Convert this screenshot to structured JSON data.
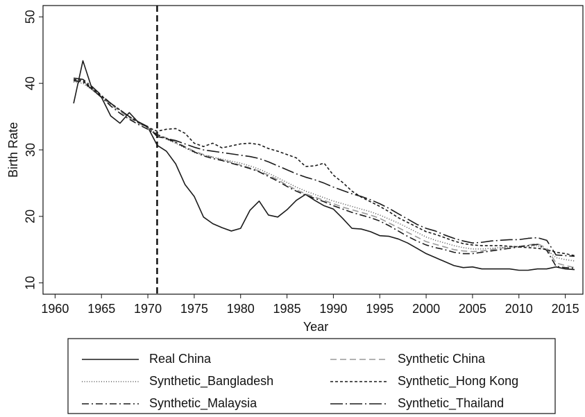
{
  "chart_data": {
    "type": "line",
    "x_label": "Year",
    "y_label": "Birth Rate",
    "x": [
      1962,
      1963,
      1964,
      1965,
      1966,
      1967,
      1968,
      1969,
      1970,
      1971,
      1972,
      1973,
      1974,
      1975,
      1976,
      1977,
      1978,
      1979,
      1980,
      1981,
      1982,
      1983,
      1984,
      1985,
      1986,
      1987,
      1988,
      1989,
      1990,
      1991,
      1992,
      1993,
      1994,
      1995,
      1996,
      1997,
      1998,
      1999,
      2000,
      2001,
      2002,
      2003,
      2004,
      2005,
      2006,
      2007,
      2008,
      2009,
      2010,
      2011,
      2012,
      2013,
      2014,
      2015,
      2016
    ],
    "series": [
      {
        "name": "Real China",
        "color": "#1a1a1a",
        "dash": "none",
        "values": [
          37,
          43.4,
          39.1,
          37.9,
          35.1,
          34.0,
          35.6,
          34.1,
          33.4,
          30.7,
          29.8,
          27.9,
          24.8,
          23.0,
          19.9,
          18.9,
          18.3,
          17.8,
          18.2,
          20.9,
          22.3,
          20.2,
          19.9,
          21.0,
          22.4,
          23.3,
          22.4,
          21.6,
          21.1,
          19.7,
          18.2,
          18.1,
          17.7,
          17.1,
          17.0,
          16.6,
          16.0,
          15.2,
          14.4,
          13.8,
          13.2,
          12.6,
          12.3,
          12.4,
          12.1,
          12.1,
          12.1,
          12.1,
          11.9,
          11.9,
          12.1,
          12.1,
          12.4,
          12.1,
          12.0
        ]
      },
      {
        "name": "Synthetic China",
        "color": "#999999",
        "dash": "9 5",
        "values": [
          40.5,
          40.3,
          39.2,
          38.0,
          36.8,
          35.8,
          34.8,
          34.0,
          33.3,
          32.3,
          31.8,
          31.2,
          30.5,
          29.8,
          29.3,
          28.9,
          28.5,
          28.1,
          27.7,
          27.3,
          26.8,
          26.2,
          25.5,
          24.7,
          24.0,
          23.4,
          22.9,
          22.4,
          21.9,
          21.4,
          21.0,
          20.6,
          20.2,
          19.7,
          19.0,
          18.3,
          17.6,
          16.9,
          16.2,
          15.8,
          15.4,
          15.0,
          14.8,
          14.7,
          14.8,
          15.0,
          15.2,
          15.4,
          15.5,
          15.7,
          15.9,
          15.2,
          13.0,
          12.6,
          12.3
        ]
      },
      {
        "name": "Synthetic_Bangladesh",
        "color": "#555555",
        "dash": "1 2.5",
        "values": [
          40.2,
          40.0,
          39.0,
          37.9,
          36.9,
          36.0,
          35.0,
          34.2,
          33.4,
          32.4,
          31.6,
          31.0,
          30.3,
          29.6,
          29.2,
          28.9,
          28.6,
          28.3,
          28.0,
          27.6,
          27.1,
          26.5,
          25.8,
          25.1,
          24.4,
          23.8,
          23.3,
          22.8,
          22.3,
          21.9,
          21.5,
          21.1,
          20.7,
          20.2,
          19.6,
          19.0,
          18.3,
          17.6,
          16.9,
          16.4,
          16.0,
          15.6,
          15.3,
          15.1,
          15.1,
          15.2,
          15.3,
          15.4,
          15.5,
          15.5,
          15.6,
          15.0,
          13.8,
          13.5,
          13.3
        ]
      },
      {
        "name": "Synthetic_Hong Kong",
        "color": "#1a1a1a",
        "dash": "4 3",
        "values": [
          40.6,
          40.4,
          39.3,
          38.1,
          37.0,
          36.0,
          35.0,
          34.1,
          33.4,
          32.8,
          33.1,
          33.2,
          32.5,
          31.0,
          30.5,
          31.0,
          30.3,
          30.6,
          30.9,
          31.0,
          30.8,
          30.2,
          29.8,
          29.3,
          28.8,
          27.5,
          27.6,
          28.0,
          26.2,
          25.1,
          23.8,
          22.9,
          22.2,
          21.5,
          20.7,
          19.8,
          19.1,
          18.4,
          17.7,
          17.3,
          16.8,
          16.3,
          15.9,
          15.7,
          15.6,
          15.6,
          15.6,
          15.5,
          15.4,
          15.3,
          15.2,
          15.0,
          14.6,
          14.4,
          14.1
        ]
      },
      {
        "name": "Synthetic_Malaysia",
        "color": "#1a1a1a",
        "dash": "10 4 2 4",
        "values": [
          40.4,
          40.2,
          39.1,
          37.9,
          36.6,
          35.5,
          34.6,
          33.8,
          33.1,
          32.3,
          31.7,
          31.1,
          30.4,
          29.7,
          29.1,
          28.7,
          28.4,
          28.0,
          27.6,
          27.2,
          26.7,
          26.0,
          25.3,
          24.5,
          23.8,
          23.2,
          22.7,
          22.2,
          21.6,
          21.1,
          20.6,
          20.2,
          19.8,
          19.3,
          18.6,
          17.8,
          17.0,
          16.3,
          15.7,
          15.3,
          15.0,
          14.6,
          14.4,
          14.4,
          14.6,
          14.8,
          15.0,
          15.2,
          15.4,
          15.6,
          15.8,
          14.9,
          12.5,
          12.3,
          12.2
        ]
      },
      {
        "name": "Synthetic_Thailand",
        "color": "#1a1a1a",
        "dash": "18 4 2 4",
        "values": [
          40.8,
          40.6,
          39.5,
          38.2,
          37.0,
          36.0,
          35.0,
          34.2,
          33.5,
          32.0,
          31.7,
          31.4,
          30.9,
          30.4,
          30.0,
          29.8,
          29.6,
          29.4,
          29.2,
          29.0,
          28.7,
          28.2,
          27.6,
          27.0,
          26.4,
          25.9,
          25.5,
          25.0,
          24.4,
          23.9,
          23.4,
          23.0,
          22.5,
          21.9,
          21.2,
          20.4,
          19.6,
          18.8,
          18.2,
          17.8,
          17.2,
          16.7,
          16.3,
          16.0,
          16.1,
          16.3,
          16.4,
          16.5,
          16.5,
          16.7,
          16.8,
          16.4,
          14.2,
          14.1,
          14.0
        ]
      }
    ],
    "xlim": [
      1958.7,
      2016.9
    ],
    "ylim": [
      8.3,
      51.7
    ],
    "xticks": [
      1960,
      1965,
      1970,
      1975,
      1980,
      1985,
      1990,
      1995,
      2000,
      2005,
      2010,
      2015
    ],
    "yticks": [
      10,
      20,
      30,
      40,
      50
    ],
    "vline": 1971,
    "grid": false,
    "legend": "bottom"
  }
}
